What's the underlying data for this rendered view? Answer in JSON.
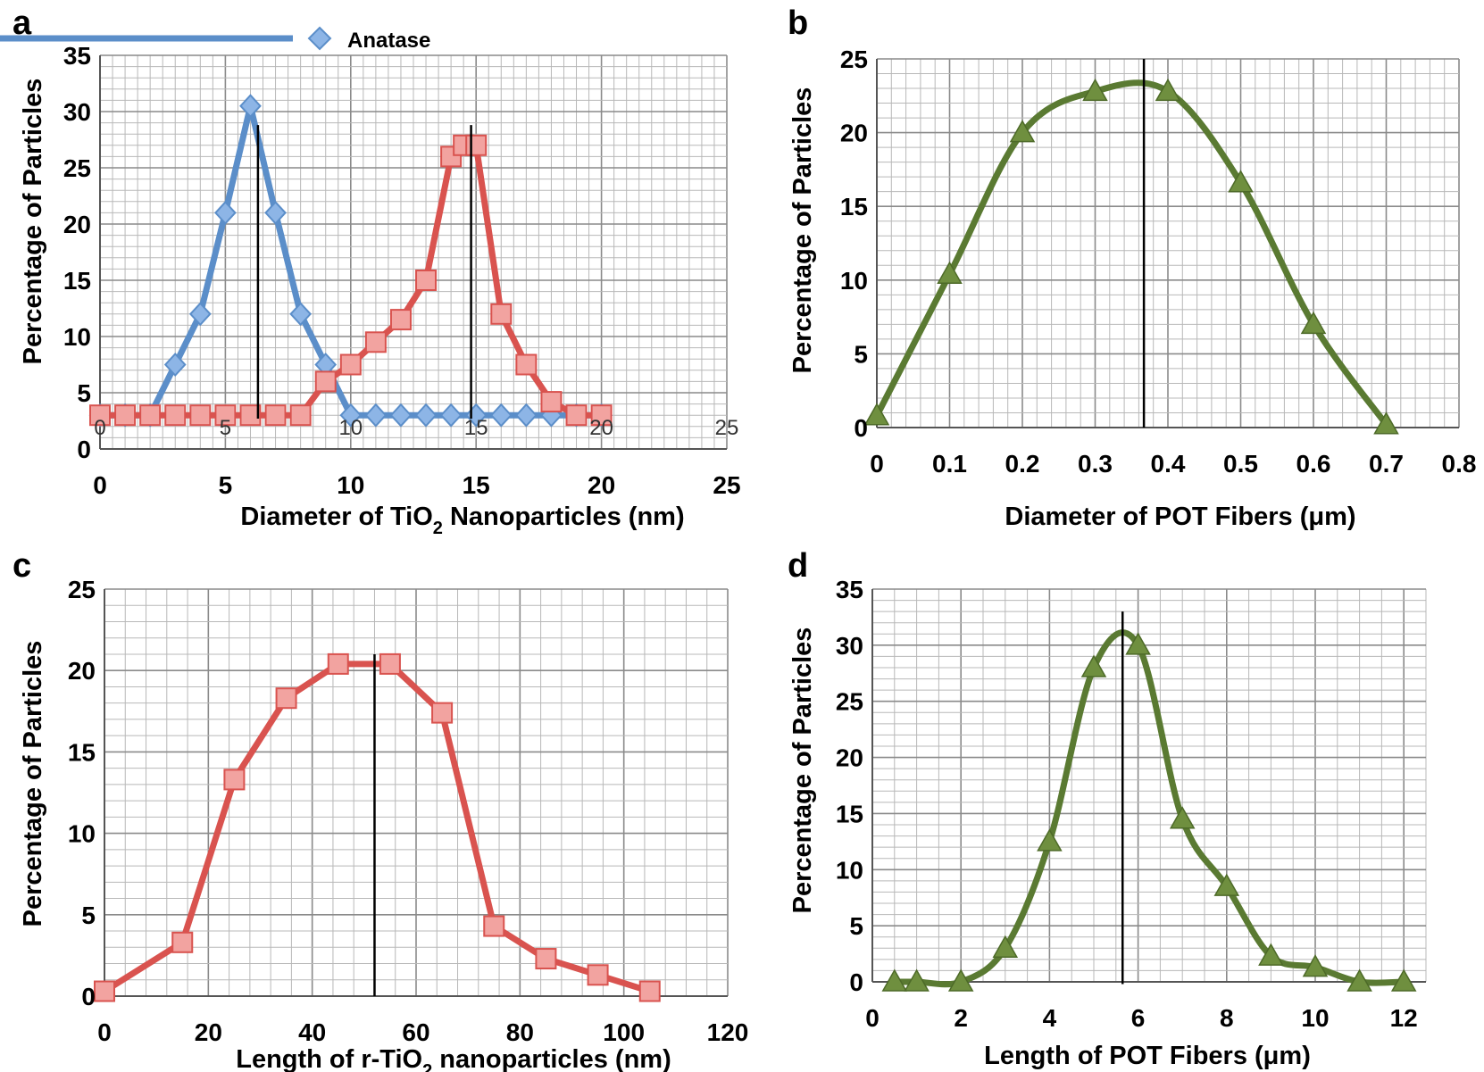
{
  "panels": [
    {
      "letter": "a",
      "xlabel_main": "Diameter of TiO",
      "xlabel_sub": "2",
      "xlabel_rest": " Nanoparticles (nm)",
      "ylabel": "Percentage of Particles",
      "x_ticks": [
        "0",
        "5",
        "10",
        "15",
        "20",
        "25"
      ],
      "x_ticks_top": [
        "0",
        "5",
        "10",
        "15",
        "20",
        "25"
      ],
      "y_ticks": [
        "0",
        "5",
        "10",
        "15",
        "20",
        "25",
        "30",
        "35"
      ],
      "legend": [
        {
          "name": "Anatase",
          "color": "#5b8ec9"
        }
      ]
    },
    {
      "letter": "b",
      "xlabel_main": "Diameter of POT Fibers (μm)",
      "xlabel_sub": "",
      "xlabel_rest": "",
      "ylabel": "Percentage of Particles",
      "x_ticks": [
        "0",
        "0.1",
        "0.2",
        "0.3",
        "0.4",
        "0.5",
        "0.6",
        "0.7",
        "0.8"
      ],
      "y_ticks": [
        "0",
        "5",
        "10",
        "15",
        "20",
        "25"
      ]
    },
    {
      "letter": "c",
      "xlabel_main": "Length of r-TiO",
      "xlabel_sub": "2",
      "xlabel_rest": " nanoparticles (nm)",
      "ylabel": "Percentage of Particles",
      "x_ticks": [
        "0",
        "20",
        "40",
        "60",
        "80",
        "100",
        "120"
      ],
      "y_ticks": [
        "0",
        "5",
        "10",
        "15",
        "20",
        "25"
      ]
    },
    {
      "letter": "d",
      "xlabel_main": "Length of POT Fibers (μm)",
      "xlabel_sub": "",
      "xlabel_rest": "",
      "ylabel": "Percentage of Particles",
      "x_ticks": [
        "0",
        "2",
        "4",
        "6",
        "8",
        "10",
        "12"
      ],
      "y_ticks": [
        "0",
        "5",
        "10",
        "15",
        "20",
        "25",
        "30",
        "35"
      ]
    }
  ],
  "chart_data": [
    {
      "panel": "a",
      "type": "line",
      "xlabel": "Diameter of TiO2 Nanoparticles (nm)",
      "ylabel": "Percentage of Particles",
      "xlim": [
        0,
        25
      ],
      "ylim": [
        0,
        35
      ],
      "grid": true,
      "legend_position": "top",
      "series": [
        {
          "name": "Anatase",
          "color": "#5b8ec9",
          "marker": "diamond",
          "x": [
            0,
            1,
            2,
            3,
            4,
            5,
            6,
            7,
            8,
            9,
            10,
            11,
            12,
            13,
            14,
            15,
            16,
            17,
            18,
            19,
            20
          ],
          "y": [
            0,
            0,
            0,
            4.5,
            9,
            18,
            27.5,
            18,
            9,
            4.5,
            0,
            0,
            0,
            0,
            0,
            0,
            0,
            0,
            0,
            0,
            0
          ]
        },
        {
          "color": "#d9534f",
          "marker": "square",
          "x": [
            0,
            1,
            2,
            3,
            4,
            5,
            6,
            7,
            8,
            9,
            10,
            11,
            12,
            13,
            14,
            14.5,
            15,
            16,
            17,
            18,
            19,
            20
          ],
          "y": [
            0,
            0,
            0,
            0,
            0,
            0,
            0,
            0,
            0,
            3,
            4.5,
            6.5,
            8.5,
            12,
            23,
            24,
            24,
            9,
            4.5,
            1.2,
            0,
            0
          ]
        }
      ],
      "vlines": [
        6.3,
        14.8
      ]
    },
    {
      "panel": "b",
      "type": "line",
      "xlabel": "Diameter of POT Fibers (μm)",
      "ylabel": "Percentage of Particles",
      "xlim": [
        0,
        0.8
      ],
      "ylim": [
        0,
        25
      ],
      "grid": true,
      "series": [
        {
          "color": "#5a7a32",
          "marker": "triangle",
          "smooth": true,
          "x": [
            0,
            0.1,
            0.2,
            0.3,
            0.4,
            0.5,
            0.6,
            0.7
          ],
          "y": [
            0.8,
            10.4,
            20,
            22.8,
            22.8,
            16.6,
            7,
            0.2
          ]
        }
      ],
      "vlines": [
        0.367
      ]
    },
    {
      "panel": "c",
      "type": "line",
      "xlabel": "Length of r-TiO2 nanoparticles (nm)",
      "ylabel": "Percentage of Particles",
      "xlim": [
        0,
        120
      ],
      "ylim": [
        0,
        25
      ],
      "grid": true,
      "series": [
        {
          "color": "#d9534f",
          "marker": "square",
          "x": [
            0,
            15,
            25,
            35,
            45,
            55,
            65,
            75,
            85,
            95,
            105
          ],
          "y": [
            0.3,
            3.3,
            13.3,
            18.3,
            20.4,
            20.4,
            17.4,
            4.3,
            2.3,
            1.3,
            0.3
          ]
        }
      ],
      "vlines": [
        52
      ]
    },
    {
      "panel": "d",
      "type": "line",
      "xlabel": "Length of POT Fibers (μm)",
      "ylabel": "Percentage of Particles",
      "xlim": [
        0,
        12.5
      ],
      "ylim": [
        0,
        35
      ],
      "grid": true,
      "series": [
        {
          "color": "#5a7a32",
          "marker": "triangle",
          "smooth": true,
          "x": [
            0.5,
            1,
            2,
            3,
            4,
            5,
            6,
            7,
            8,
            9,
            10,
            11,
            12
          ],
          "y": [
            0,
            0,
            0,
            3,
            12.5,
            28,
            30,
            14.5,
            8.5,
            2.3,
            1.3,
            0,
            0
          ]
        }
      ],
      "vlines": [
        5.65
      ]
    }
  ]
}
